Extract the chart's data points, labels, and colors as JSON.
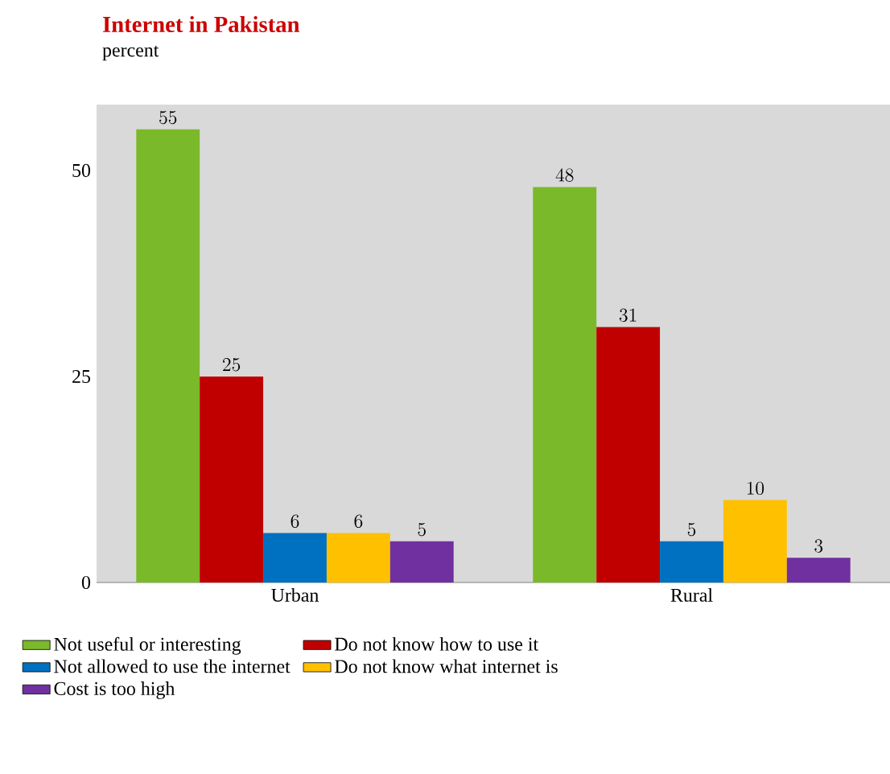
{
  "chart_data": {
    "type": "bar",
    "title": "Internet in Pakistan",
    "ylabel": "percent",
    "categories": [
      "Urban",
      "Rural"
    ],
    "series": [
      {
        "name": "Not useful or interesting",
        "color": "#7ab929",
        "values": [
          55,
          48
        ]
      },
      {
        "name": "Do not know how to use it",
        "color": "#c00000",
        "values": [
          25,
          31
        ]
      },
      {
        "name": "Not allowed to use the internet",
        "color": "#0070c0",
        "values": [
          6,
          5
        ]
      },
      {
        "name": "Do not know what internet is",
        "color": "#ffc000",
        "values": [
          6,
          10
        ]
      },
      {
        "name": "Cost is too high",
        "color": "#7030a0",
        "values": [
          5,
          3
        ]
      }
    ],
    "ylim": [
      0,
      58
    ],
    "yticks": [
      0,
      25,
      50
    ],
    "data_labels": true,
    "legend": "bottom",
    "grid": false
  }
}
